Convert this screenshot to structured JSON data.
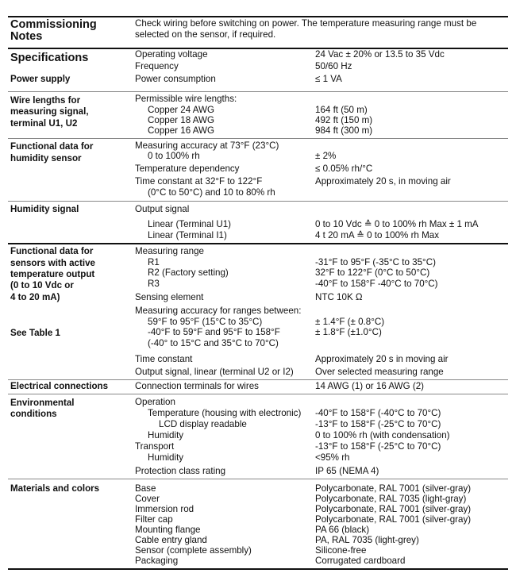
{
  "notes": {
    "title_1": "Commissioning",
    "title_2": "Notes",
    "text_1": "Check wiring before switching on power. The temperature measuring range must be",
    "text_2": "selected on the sensor, if required."
  },
  "specs": {
    "title": "Specifications",
    "subtitle": "Power supply",
    "rows": [
      {
        "label": "Operating voltage",
        "value": "24 Vac ± 20% or 13.5 to 35 Vdc"
      },
      {
        "label": "Frequency",
        "value": "50/60 Hz"
      },
      {
        "label": "Power consumption",
        "value": "≤ 1 VA"
      }
    ]
  },
  "wire": {
    "title_1": "Wire lengths for",
    "title_2": "measuring signal,",
    "title_3": "terminal U1, U2",
    "intro": "Permissible wire lengths:",
    "rows": [
      {
        "label": "Copper 24 AWG",
        "value": "164 ft (50 m)"
      },
      {
        "label": "Copper 18 AWG",
        "value": "492 ft (150 m)"
      },
      {
        "label": "Copper 16 AWG",
        "value": "984 ft (300 m)"
      }
    ]
  },
  "humfunc": {
    "title_1": "Functional data for",
    "title_2": "humidity sensor",
    "acc_label": "Measuring accuracy at 73°F (23°C)",
    "acc_sub": "0 to 100% rh",
    "acc_value": "± 2%",
    "dep_label": "Temperature dependency",
    "dep_value": "≤ 0.05% rh/°C",
    "tc_label_1": "Time constant at 32°F to 122°F",
    "tc_label_2": "(0°C to 50°C) and 10 to 80% rh",
    "tc_value": "Approximately 20 s, in moving air"
  },
  "humsig": {
    "title": "Humidity signal",
    "intro": "Output signal",
    "rows": [
      {
        "label": "Linear (Terminal U1)",
        "value": "0 to 10 Vdc ≙ 0 to 100% rh Max ± 1 mA"
      },
      {
        "label": "Linear (Terminal I1)",
        "value": "4 t 20 mA ≙ 0 to 100% rh Max"
      }
    ]
  },
  "temp": {
    "title_1": "Functional data for",
    "title_2": "sensors with active",
    "title_3": "temperature output",
    "title_4": "(0 to 10 Vdc or",
    "title_5": "4 to 20 mA)",
    "see": "See Table 1",
    "range_label": "Measuring range",
    "ranges": [
      {
        "label": "R1",
        "value": "-31°F to 95°F (-35°C to 35°C)"
      },
      {
        "label": "R2 (Factory setting)",
        "value": "32°F to 122°F (0°C to 50°C)"
      },
      {
        "label": "R3",
        "value": "-40°F to 158°F -40°C to 70°C)"
      }
    ],
    "sensing_label": "Sensing element",
    "sensing_value": "NTC 10K Ω",
    "acc_label": "Measuring accuracy for ranges between:",
    "acc_1_label": "59°F to 95°F (15°C to 35°C)",
    "acc_1_value": "± 1.4°F (± 0.8°C)",
    "acc_2_label": "-40°F to 59°F and 95°F to 158°F",
    "acc_2_value": "± 1.8°F (±1.0°C)",
    "acc_2_label_2": "(-40° to 15°C and 35°C to 70°C)",
    "tc_label": "Time constant",
    "tc_value": "Approximately 20 s in moving air",
    "out_label": "Output signal, linear (terminal U2 or I2)",
    "out_value": "Over selected measuring range"
  },
  "elec": {
    "title": "Electrical connections",
    "label": "Connection terminals for wires",
    "value": "14 AWG (1) or 16 AWG (2)"
  },
  "env": {
    "title_1": "Environmental",
    "title_2": "conditions",
    "operation": "Operation",
    "temp_label": "Temperature (housing with electronic)",
    "temp_value": "-40°F to 158°F (-40°C to 70°C)",
    "lcd_label": "LCD display readable",
    "lcd_value": "-13°F to 158°F (-25°C to 70°C)",
    "hum_label": "Humidity",
    "hum_value": "0 to 100% rh (with condensation)",
    "transport_label": "Transport",
    "transport_value": "-13°F to 158°F (-25°C to 70°C)",
    "thum_label": "Humidity",
    "thum_value": "<95% rh",
    "prot_label": "Protection class rating",
    "prot_value": "IP 65 (NEMA 4)"
  },
  "materials": {
    "title": "Materials and colors",
    "rows": [
      {
        "label": "Base",
        "value": "Polycarbonate, RAL 7001 (silver-gray)"
      },
      {
        "label": "Cover",
        "value": "Polycarbonate, RAL 7035 (light-gray)"
      },
      {
        "label": "Immersion rod",
        "value": "Polycarbonate, RAL 7001 (silver-gray)"
      },
      {
        "label": "Filter cap",
        "value": "Polycarbonate, RAL 7001 (silver-gray)"
      },
      {
        "label": "Mounting flange",
        "value": "PA 66 (black)"
      },
      {
        "label": "Cable entry gland",
        "value": "PA, RAL 7035 (light-grey)"
      },
      {
        "label": "Sensor (complete assembly)",
        "value": "Silicone-free"
      },
      {
        "label": "Packaging",
        "value": "Corrugated cardboard"
      }
    ]
  }
}
